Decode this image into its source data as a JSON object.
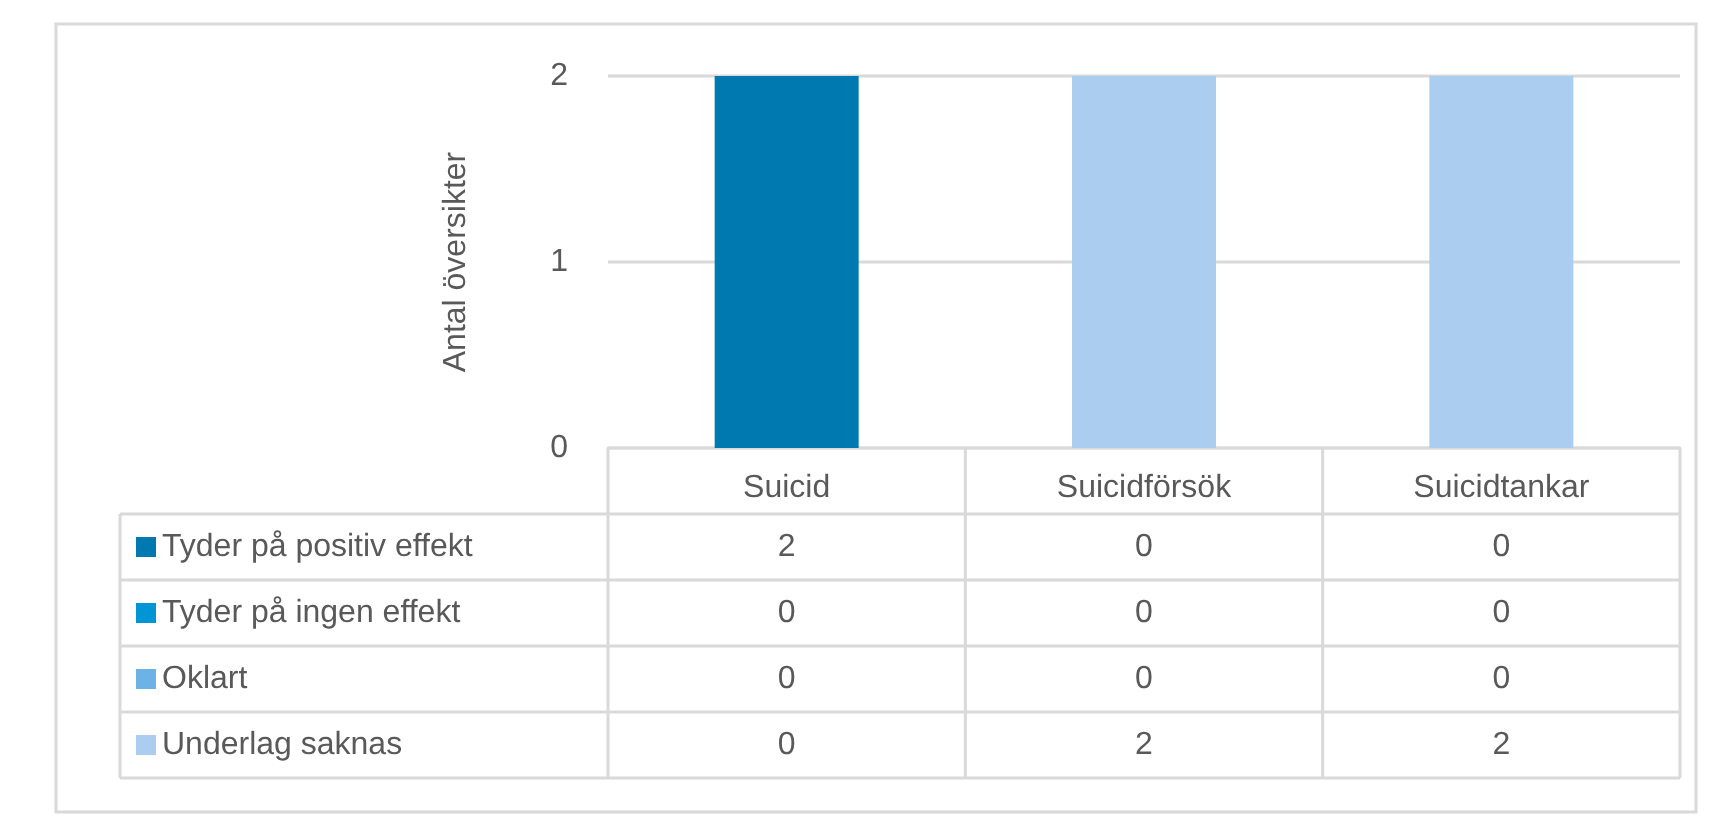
{
  "chart_data": {
    "type": "bar",
    "stacked": true,
    "ylabel": "Antal översikter",
    "categories": [
      "Suicid",
      "Suicidförsök",
      "Suicidtankar"
    ],
    "series": [
      {
        "name": "Tyder på positiv effekt",
        "color": "#0079b1",
        "values": [
          2,
          0,
          0
        ]
      },
      {
        "name": "Tyder på ingen effekt",
        "color": "#0096d6",
        "values": [
          0,
          0,
          0
        ]
      },
      {
        "name": "Oklart",
        "color": "#6cb2e6",
        "values": [
          0,
          0,
          0
        ]
      },
      {
        "name": "Underlag saknas",
        "color": "#abcdef",
        "values": [
          0,
          2,
          2
        ]
      }
    ],
    "ylim": [
      0,
      2
    ],
    "yticks": [
      0,
      1,
      2
    ],
    "grid": "y",
    "legend": "bottom",
    "data_labels": true
  }
}
